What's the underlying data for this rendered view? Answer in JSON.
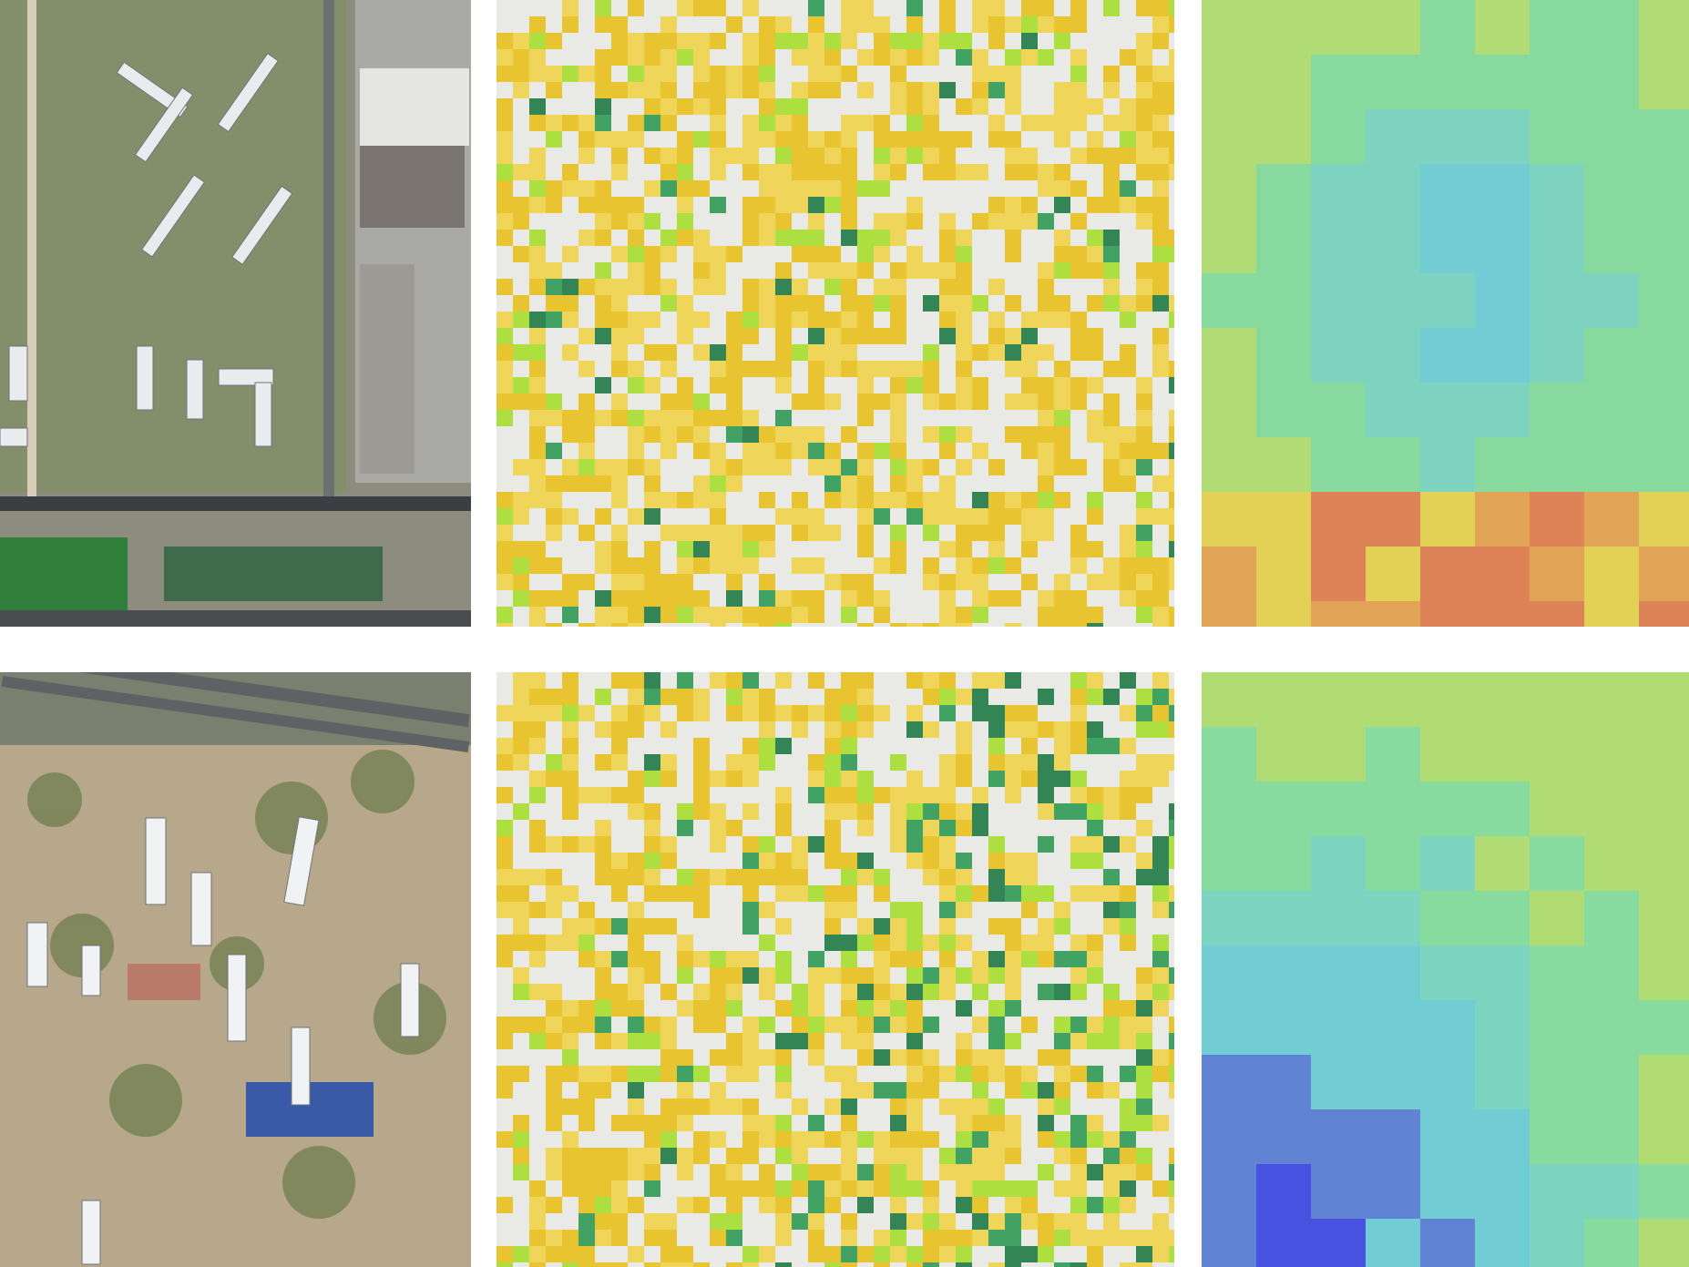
{
  "figure": {
    "rows": [
      {
        "id": "row-1",
        "aerial": {
          "description_icon": "satellite-aerial-image"
        },
        "fine_overlay": {
          "palette": [
            "#e8c01c",
            "#f0d44a",
            "#a6de2e",
            "#2f9a55",
            "#1f7a45"
          ]
        },
        "coarse_overlay": {
          "palette": [
            "#6fcfdc",
            "#7ad8c6",
            "#86e09e",
            "#b6e26e",
            "#f2d54a",
            "#f0a048",
            "#ec7a4a"
          ]
        }
      },
      {
        "id": "row-2",
        "aerial": {
          "description_icon": "satellite-aerial-image"
        },
        "fine_overlay": {
          "palette": [
            "#e8c01c",
            "#f0d44a",
            "#a6de2e",
            "#2f9a55",
            "#1f7a45"
          ]
        },
        "coarse_overlay": {
          "palette": [
            "#3f45ea",
            "#5a7cdc",
            "#6fcfdc",
            "#7ad8c6",
            "#86e09e",
            "#b6e26e"
          ]
        }
      }
    ]
  }
}
